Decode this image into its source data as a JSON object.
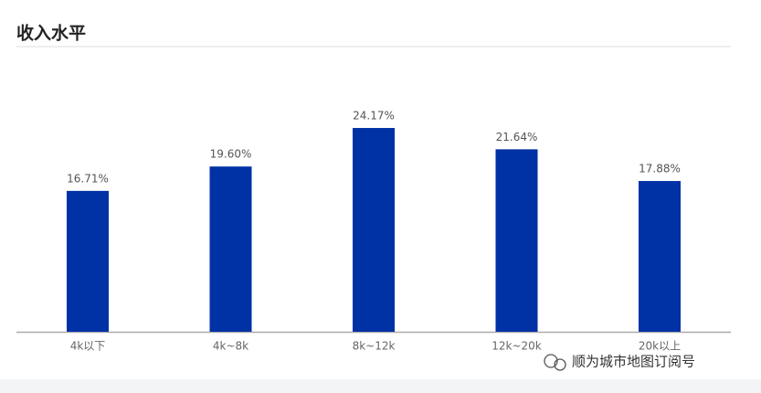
{
  "chart_data": {
    "type": "bar",
    "title": "收入水平",
    "categories": [
      "4k以下",
      "4k~8k",
      "8k~12k",
      "12k~20k",
      "20k以上"
    ],
    "values": [
      16.71,
      19.6,
      24.17,
      21.64,
      17.88
    ],
    "value_labels": [
      "16.71%",
      "19.60%",
      "24.17%",
      "21.64%",
      "17.88%"
    ],
    "color": "#0031a5",
    "watermark": "顺为城市地图订阅号"
  }
}
